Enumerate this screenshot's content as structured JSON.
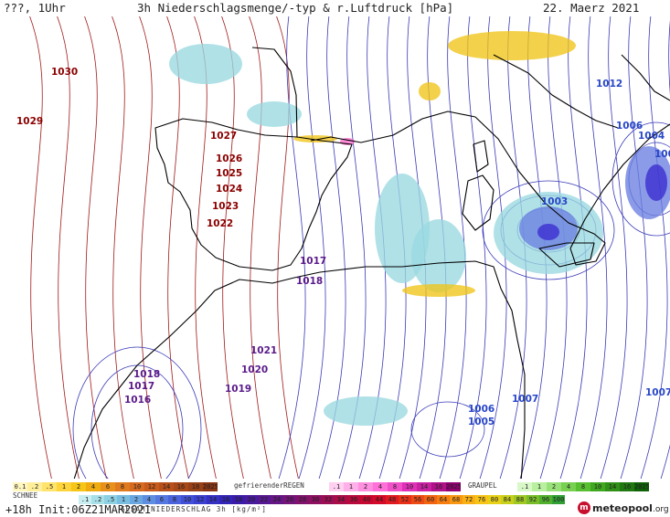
{
  "header": {
    "left_label": "???, 1Uhr",
    "title": "3h Niederschlagsmenge/-typ & r.Luftdruck [hPa]",
    "date": "22. Maerz 2021"
  },
  "colors": {
    "isobar_high": "#a01818",
    "isobar_low": "#3a3ab8",
    "isobar_label_high": "#8b0000",
    "isobar_label_low_purple": "#5a1a8a",
    "isobar_label_low_blue": "#2846c8",
    "coastline": "#000000",
    "precip_light": "#9ad8e0",
    "precip_blue": "#6a7fe0",
    "precip_core": "#3a2bd0",
    "snow": "#f0c418",
    "freezing_rain": "#ff6ad0"
  },
  "isobars": [
    {
      "label": "1030",
      "band": "high"
    },
    {
      "label": "1029",
      "band": "high"
    },
    {
      "label": "1027",
      "band": "high"
    },
    {
      "label": "1026",
      "band": "high"
    },
    {
      "label": "1025",
      "band": "high"
    },
    {
      "label": "1024",
      "band": "high"
    },
    {
      "label": "1023",
      "band": "high"
    },
    {
      "label": "1022",
      "band": "high"
    },
    {
      "label": "1021",
      "band": "low_purple"
    },
    {
      "label": "1020",
      "band": "low_purple"
    },
    {
      "label": "1019",
      "band": "low_purple"
    },
    {
      "label": "1018",
      "band": "low_purple"
    },
    {
      "label": "1018",
      "band": "low_purple"
    },
    {
      "label": "1017",
      "band": "low_purple"
    },
    {
      "label": "1017",
      "band": "low_purple"
    },
    {
      "label": "1016",
      "band": "low_purple"
    },
    {
      "label": "1012",
      "band": "low_blue"
    },
    {
      "label": "1007",
      "band": "low_blue"
    },
    {
      "label": "1007",
      "band": "low_blue"
    },
    {
      "label": "1006",
      "band": "low_blue"
    },
    {
      "label": "1006",
      "band": "low_blue"
    },
    {
      "label": "1005",
      "band": "low_blue"
    },
    {
      "label": "1004",
      "band": "low_blue"
    },
    {
      "label": "1003",
      "band": "low_blue"
    },
    {
      "label": "100",
      "band": "low_blue"
    }
  ],
  "legend": {
    "snow_title": "SCHNEE",
    "snow_values": [
      "0.1",
      ".2",
      ".5",
      "1",
      "2",
      "4",
      "6",
      "8",
      "10",
      "12",
      "14",
      "16",
      "18",
      "2025+"
    ],
    "snow_colors": [
      "#fff6c0",
      "#ffef9a",
      "#ffe36a",
      "#ffd43a",
      "#f7c418",
      "#efab10",
      "#e8901a",
      "#e07a1e",
      "#d86a20",
      "#c85a1c",
      "#b8501a",
      "#a84818",
      "#984016",
      "#883614"
    ],
    "freezing_rain_title": "gefrierenderREGEN",
    "freezing_rain_values": [
      ".1",
      "1",
      "2",
      "4",
      "8",
      "10",
      "14",
      "16",
      "2025+"
    ],
    "freezing_rain_colors": [
      "#ffd0f0",
      "#ffb0e8",
      "#ff90e0",
      "#ff70d8",
      "#f050c8",
      "#e030b8",
      "#c820a0",
      "#b01088",
      "#900070"
    ],
    "graupel_title": "GRAUPEL",
    "graupel_values": [
      ".1",
      "1",
      "2",
      "4",
      "8",
      "10",
      "14",
      "16",
      "2025+"
    ],
    "graupel_colors": [
      "#d8f8c8",
      "#b8f0a0",
      "#98e078",
      "#78d050",
      "#58c030",
      "#40a820",
      "#309018",
      "#207810",
      "#106008"
    ],
    "rain_values": [
      ".1",
      ".2",
      ".5",
      "1",
      "2",
      "4",
      "6",
      "8",
      "10",
      "12",
      "14",
      "16",
      "18",
      "20",
      "22",
      "24",
      "26",
      "28",
      "30",
      "32",
      "34",
      "36",
      "40",
      "44",
      "48",
      "52",
      "56",
      "60",
      "64",
      "68",
      "72",
      "76",
      "80",
      "84",
      "88",
      "92",
      "96",
      "100"
    ],
    "rain_colors": [
      "#c8eef2",
      "#a8e0e8",
      "#8cd0e2",
      "#78bde0",
      "#6aa6e0",
      "#5e8ee0",
      "#5478e0",
      "#4a62dc",
      "#4250d8",
      "#3a40d0",
      "#3430c4",
      "#3224b4",
      "#3a1ca8",
      "#481a9c",
      "#561890",
      "#641684",
      "#721478",
      "#80126c",
      "#8e1060",
      "#9c0e54",
      "#aa0c48",
      "#b80a3c",
      "#c60830",
      "#d40a28",
      "#e01a20",
      "#e83018",
      "#ee4a14",
      "#f26410",
      "#f67e10",
      "#f89812",
      "#f8b014",
      "#f6c416",
      "#e8d018",
      "#c8d01c",
      "#a0c822",
      "#78bc28",
      "#50b02e",
      "#30a034"
    ],
    "total_title": "GESAMTNIEDERSCHLAG 3h [kg/m²]"
  },
  "footer": {
    "run_label": "+18h Init:06Z21MAR2021",
    "logo_text": "meteopool",
    "logo_domain": ".org"
  }
}
